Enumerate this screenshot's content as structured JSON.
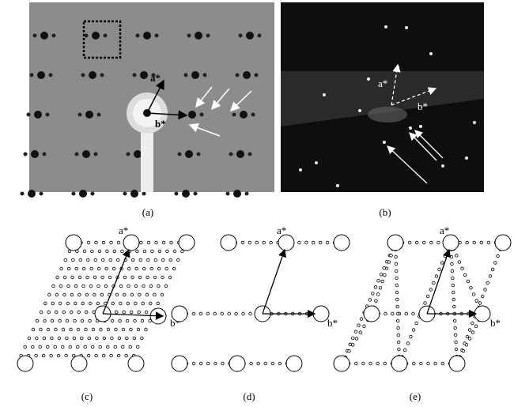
{
  "panels": [
    {
      "label": "(a)",
      "a_star": "a*",
      "b_star": "b*"
    },
    {
      "label": "(b)",
      "a_star": "a*",
      "b_star": "b*"
    },
    {
      "label": "(c)",
      "a_star": "a*",
      "b_star": "b*"
    },
    {
      "label": "(d)",
      "a_star": "a*",
      "b_star": "b*"
    },
    {
      "label": "(e)",
      "a_star": "a*",
      "b_star": "b*"
    }
  ]
}
